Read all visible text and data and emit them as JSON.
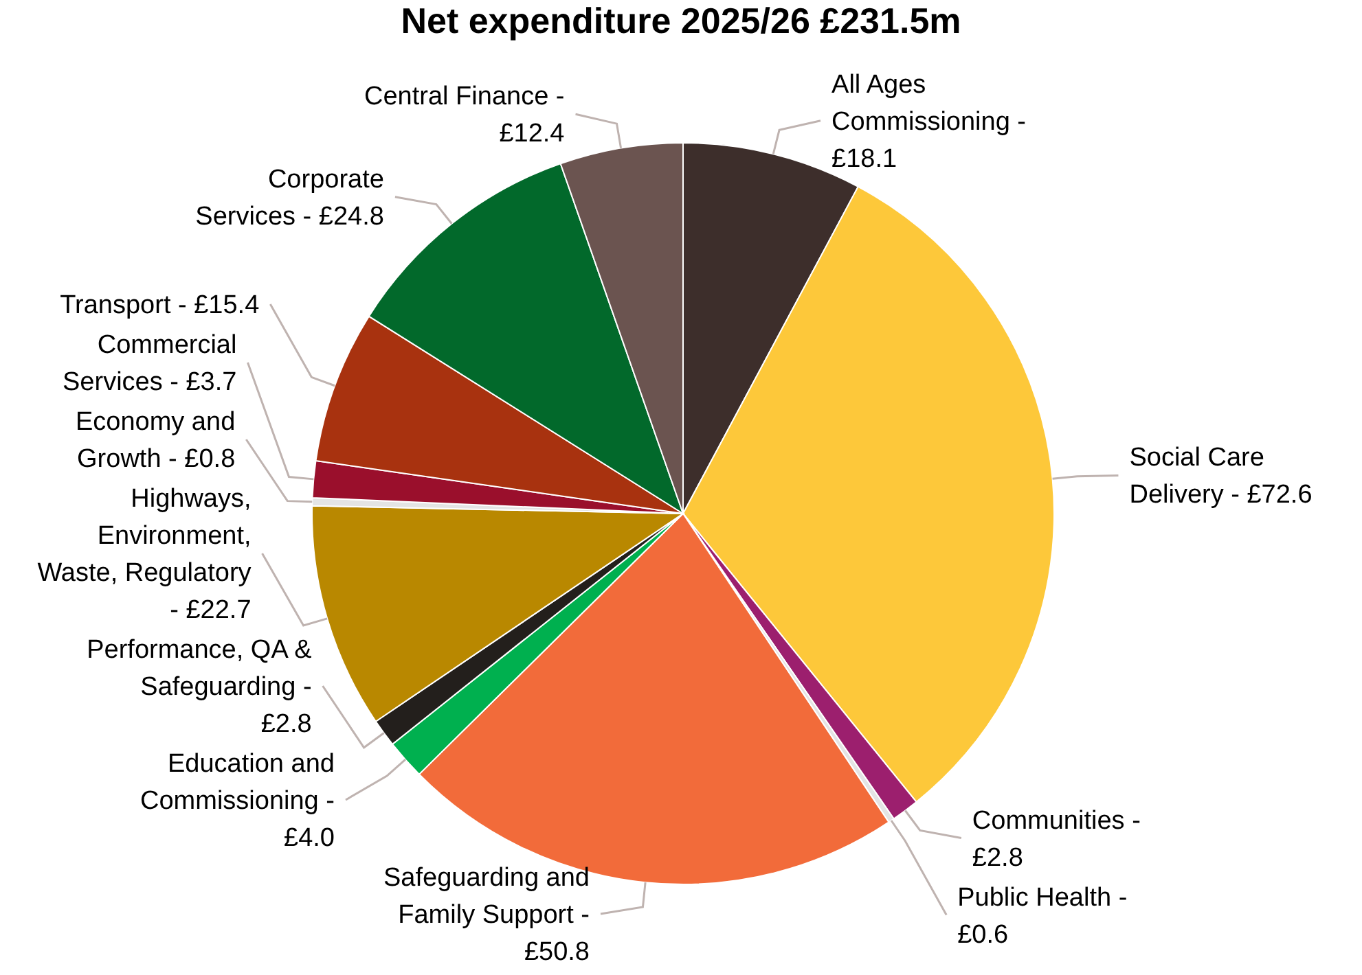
{
  "chart_data": {
    "type": "pie",
    "title": "Net expenditure 2025/26 £231.5m",
    "categories": [
      "All Ages Commissioning -",
      "Social Care Delivery -",
      "Communities -",
      "Public Health -",
      "Safeguarding and Family Support -",
      "Education and Commissioning -",
      "Performance, QA & Safeguarding -",
      "Highways, Environment, Waste, Regulatory -",
      "Economy and Growth -",
      "Commercial Services -",
      "Transport -",
      "Corporate Services -",
      "Central Finance -"
    ],
    "values": [
      18.1,
      72.6,
      2.8,
      0.6,
      50.8,
      4.0,
      2.8,
      22.7,
      0.8,
      3.7,
      15.4,
      24.8,
      12.4
    ],
    "value_labels": [
      "£18.1",
      "£72.6",
      "£2.8",
      "£0.6",
      "£50.8",
      "£4.0",
      "£2.8",
      "£22.7",
      "£0.8",
      "£3.7",
      "£15.4",
      "£24.8",
      "£12.4"
    ],
    "colors": [
      "#3d2e2b",
      "#fdc83a",
      "#9c1f6e",
      "#e4e4e4",
      "#f26b3a",
      "#00b04f",
      "#231f1c",
      "#b98800",
      "#e4e4e4",
      "#9a0f2c",
      "#a8320f",
      "#02692b",
      "#6b5450"
    ],
    "data_labels": true
  }
}
